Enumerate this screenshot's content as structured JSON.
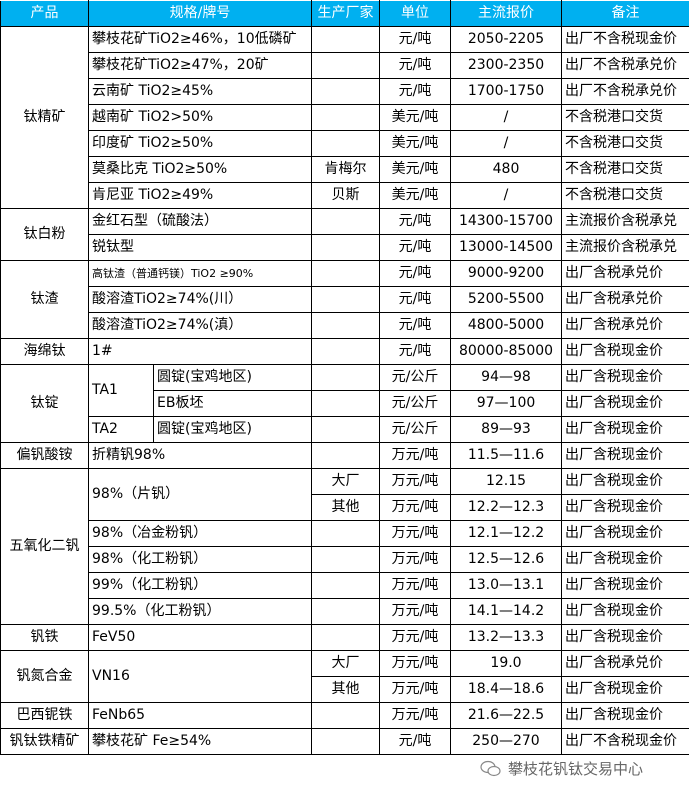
{
  "header": {
    "product": "产品",
    "spec": "规格/牌号",
    "maker": "生产厂家",
    "unit": "单位",
    "price": "主流报价",
    "note": "备注"
  },
  "colors": {
    "header_bg": "#00b0f0",
    "header_text": "#ffffff"
  },
  "groups": [
    {
      "product": "钛精矿",
      "rows": [
        {
          "spec": "攀枝花矿TiO2≥46%，10低磷矿",
          "variants": [
            {
              "maker": "",
              "unit": "元/吨",
              "price": "2050-2205",
              "note": "出厂不含税现金价"
            }
          ]
        },
        {
          "spec": "攀枝花矿TiO2≥47%，20矿",
          "variants": [
            {
              "maker": "",
              "unit": "元/吨",
              "price": "2300-2350",
              "note": "出厂不含税承兑价"
            }
          ]
        },
        {
          "spec": "云南矿 TiO2≥45%",
          "variants": [
            {
              "maker": "",
              "unit": "元/吨",
              "price": "1700-1750",
              "note": "出厂不含税承兑价"
            }
          ]
        },
        {
          "spec": "越南矿 TiO2>50%",
          "variants": [
            {
              "maker": "",
              "unit": "美元/吨",
              "price": "/",
              "note": "不含税港口交货"
            }
          ]
        },
        {
          "spec": "印度矿 TiO2≥50%",
          "variants": [
            {
              "maker": "",
              "unit": "美元/吨",
              "price": "/",
              "note": "不含税港口交货"
            }
          ]
        },
        {
          "spec": "莫桑比克 TiO2≥50%",
          "variants": [
            {
              "maker": "肯梅尔",
              "unit": "美元/吨",
              "price": "480",
              "note": "不含税港口交货"
            }
          ]
        },
        {
          "spec": "肯尼亚 TiO2≥49%",
          "variants": [
            {
              "maker": "贝斯",
              "unit": "美元/吨",
              "price": "/",
              "note": "不含税港口交货"
            }
          ]
        }
      ]
    },
    {
      "product": "钛白粉",
      "rows": [
        {
          "spec": "金红石型（硫酸法）",
          "variants": [
            {
              "maker": "",
              "unit": "元/吨",
              "price": "14300-15700",
              "note": "主流报价含税承兑"
            }
          ]
        },
        {
          "spec": "锐钛型",
          "variants": [
            {
              "maker": "",
              "unit": "元/吨",
              "price": "13000-14500",
              "note": "主流报价含税承兑"
            }
          ]
        }
      ]
    },
    {
      "product": "钛渣",
      "rows": [
        {
          "spec": "高钛渣（普通钙镁）TiO2 ≥90%",
          "small": true,
          "variants": [
            {
              "maker": "",
              "unit": "元/吨",
              "price": "9000-9200",
              "note": "出厂含税承兑价"
            }
          ]
        },
        {
          "spec": "酸溶渣TiO2≥74%(川）",
          "variants": [
            {
              "maker": "",
              "unit": "元/吨",
              "price": "5200-5500",
              "note": "出厂含税承兑价"
            }
          ]
        },
        {
          "spec": "酸溶渣TiO2≥74%(滇）",
          "variants": [
            {
              "maker": "",
              "unit": "元/吨",
              "price": "4800-5000",
              "note": "出厂含税承兑价"
            }
          ]
        }
      ]
    },
    {
      "product": "海绵钛",
      "rows": [
        {
          "spec": "1#",
          "variants": [
            {
              "maker": "",
              "unit": "元/吨",
              "price": "80000-85000",
              "note": "出厂含税现金价"
            }
          ]
        }
      ]
    },
    {
      "product": "钛锭",
      "rows": [
        {
          "spec": "TA1",
          "variants": [
            {
              "sub": "圆锭(宝鸡地区)",
              "maker": "",
              "unit": "元/公斤",
              "price": "94—98",
              "note": "出厂含税现金价"
            },
            {
              "sub": "EB板坯",
              "maker": "",
              "unit": "元/公斤",
              "price": "97—100",
              "note": "出厂含税现金价"
            }
          ]
        },
        {
          "spec": "TA2",
          "variants": [
            {
              "sub": "圆锭(宝鸡地区)",
              "maker": "",
              "unit": "元/公斤",
              "price": "89—93",
              "note": "出厂含税现金价"
            }
          ]
        }
      ]
    },
    {
      "product": "偏钒酸铵",
      "rows": [
        {
          "spec": "折精钒98%",
          "variants": [
            {
              "maker": "",
              "unit": "万元/吨",
              "price": "11.5—11.6",
              "note": "出厂含税现金价"
            }
          ]
        }
      ]
    },
    {
      "product": "五氧化二钒",
      "rows": [
        {
          "spec": "98%（片钒）",
          "variants": [
            {
              "maker": "大厂",
              "unit": "万元/吨",
              "price": "12.15",
              "note": "出厂含税现金价"
            },
            {
              "maker": "其他",
              "unit": "万元/吨",
              "price": "12.2—12.3",
              "note": "出厂含税现金价"
            }
          ]
        },
        {
          "spec": "98%（冶金粉钒）",
          "variants": [
            {
              "maker": "",
              "unit": "万元/吨",
              "price": "12.1—12.2",
              "note": "出厂含税现金价"
            }
          ]
        },
        {
          "spec": "98%（化工粉钒）",
          "variants": [
            {
              "maker": "",
              "unit": "万元/吨",
              "price": "12.5—12.6",
              "note": "出厂含税现金价"
            }
          ]
        },
        {
          "spec": "99%（化工粉钒）",
          "variants": [
            {
              "maker": "",
              "unit": "万元/吨",
              "price": "13.0—13.1",
              "note": "出厂含税现金价"
            }
          ]
        },
        {
          "spec": "99.5%（化工粉钒）",
          "variants": [
            {
              "maker": "",
              "unit": "万元/吨",
              "price": "14.1—14.2",
              "note": "出厂含税现金价"
            }
          ]
        }
      ]
    },
    {
      "product": "钒铁",
      "rows": [
        {
          "spec": "FeV50",
          "variants": [
            {
              "maker": "",
              "unit": "万元/吨",
              "price": "13.2—13.3",
              "note": "出厂含税现金价"
            }
          ]
        }
      ]
    },
    {
      "product": "钒氮合金",
      "rows": [
        {
          "spec": "VN16",
          "variants": [
            {
              "maker": "大厂",
              "unit": "万元/吨",
              "price": "19.0",
              "note": "出厂含税承兑价"
            },
            {
              "maker": "其他",
              "unit": "万元/吨",
              "price": "18.4—18.6",
              "note": "出厂含税现金价"
            }
          ]
        }
      ]
    },
    {
      "product": "巴西铌铁",
      "rows": [
        {
          "spec": "FeNb65",
          "variants": [
            {
              "maker": "",
              "unit": "万元/吨",
              "price": "21.6—22.5",
              "note": "出厂含税现金价"
            }
          ]
        }
      ]
    },
    {
      "product": "钒钛铁精矿",
      "rows": [
        {
          "spec": "攀枝花矿 Fe≥54%",
          "variants": [
            {
              "maker": "",
              "unit": "元/吨",
              "price": "250—270",
              "note": "出厂不含税现金价"
            }
          ]
        }
      ]
    }
  ],
  "watermark": {
    "text": "攀枝花钒钛交易中心",
    "icon": "wechat-icon"
  }
}
